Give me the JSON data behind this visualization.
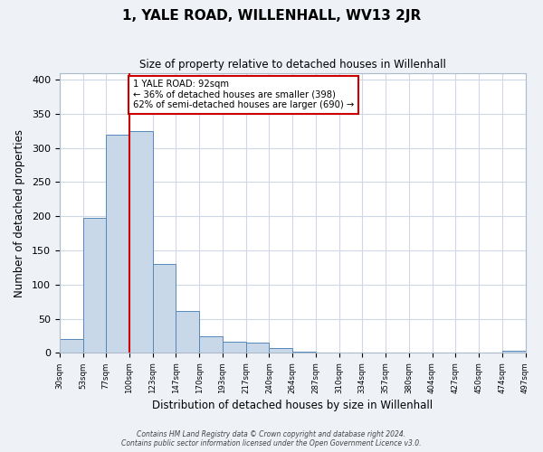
{
  "title": "1, YALE ROAD, WILLENHALL, WV13 2JR",
  "subtitle": "Size of property relative to detached houses in Willenhall",
  "xlabel": "Distribution of detached houses by size in Willenhall",
  "ylabel": "Number of detached properties",
  "bar_values": [
    20,
    198,
    320,
    325,
    130,
    62,
    25,
    17,
    15,
    7,
    2,
    0,
    0,
    0,
    0,
    0,
    1,
    0,
    1,
    3
  ],
  "bin_labels": [
    "30sqm",
    "53sqm",
    "77sqm",
    "100sqm",
    "123sqm",
    "147sqm",
    "170sqm",
    "193sqm",
    "217sqm",
    "240sqm",
    "264sqm",
    "287sqm",
    "310sqm",
    "334sqm",
    "357sqm",
    "380sqm",
    "404sqm",
    "427sqm",
    "450sqm",
    "474sqm",
    "497sqm"
  ],
  "bar_color": "#c8d8e8",
  "bar_edge_color": "#5588bb",
  "vline_color": "#cc0000",
  "annotation_title": "1 YALE ROAD: 92sqm",
  "annotation_line1": "← 36% of detached houses are smaller (398)",
  "annotation_line2": "62% of semi-detached houses are larger (690) →",
  "annotation_box_color": "#cc0000",
  "ylim": [
    0,
    410
  ],
  "yticks": [
    0,
    50,
    100,
    150,
    200,
    250,
    300,
    350,
    400
  ],
  "footer1": "Contains HM Land Registry data © Crown copyright and database right 2024.",
  "footer2": "Contains public sector information licensed under the Open Government Licence v3.0.",
  "bg_color": "#eef2f7",
  "plot_bg_color": "#ffffff",
  "grid_color": "#d0d8e8"
}
